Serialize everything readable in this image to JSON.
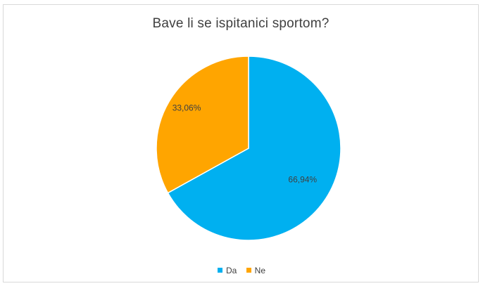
{
  "chart_data": {
    "type": "pie",
    "title": "Bave li se ispitanici sportom?",
    "categories": [
      "Da",
      "Ne"
    ],
    "values": [
      66.94,
      33.06
    ],
    "value_labels": [
      "66,94%",
      "33,06%"
    ],
    "colors": [
      "#00b0f0",
      "#ffa500"
    ],
    "legend_position": "bottom",
    "start_angle": "12 o'clock, clockwise"
  }
}
